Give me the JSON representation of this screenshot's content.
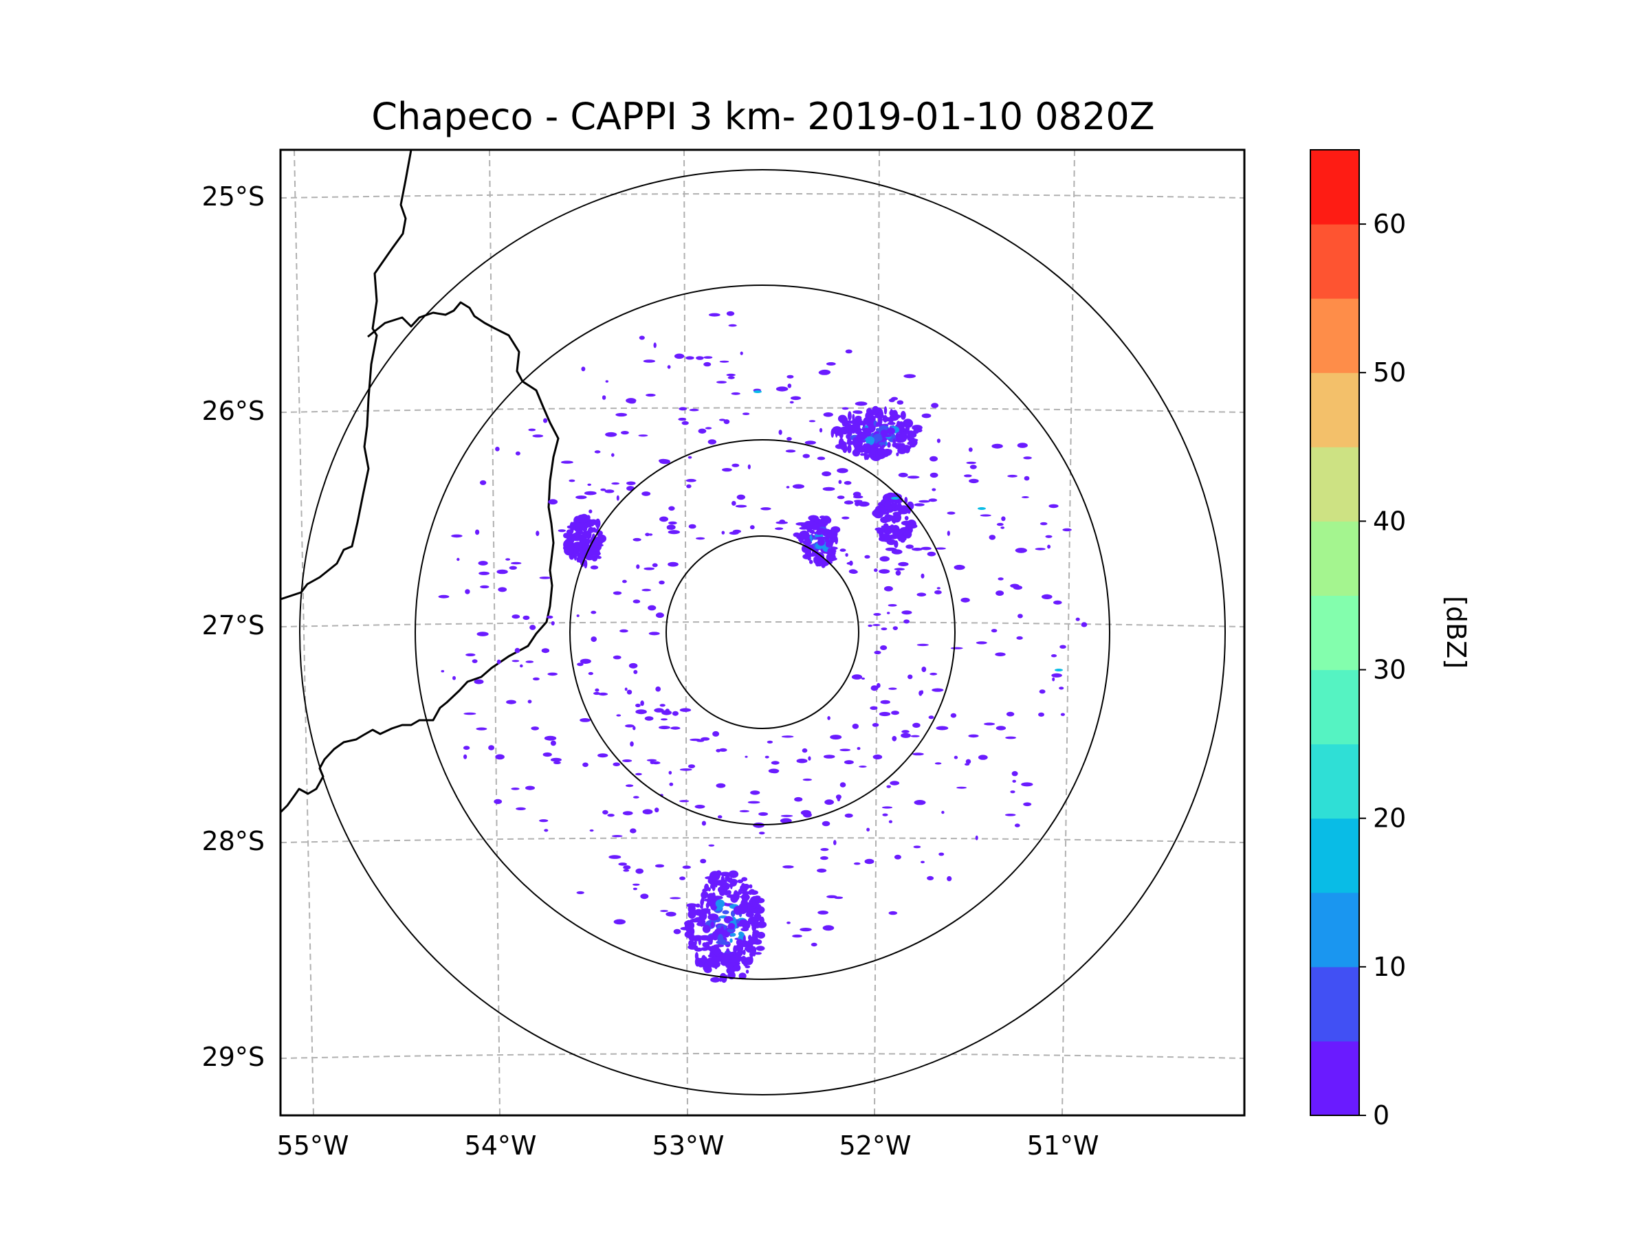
{
  "title": "Chapeco - CAPPI 3 km- 2019-01-10 0820Z",
  "map": {
    "lat_labels": [
      "25°S",
      "26°S",
      "27°S",
      "28°S",
      "29°S"
    ],
    "lon_labels": [
      "55°W",
      "54°W",
      "53°W",
      "52°W",
      "51°W"
    ],
    "radar_center": {
      "lon": -52.6,
      "lat": -27.02
    },
    "range_rings": 4
  },
  "colorbar": {
    "label": "[dBZ]",
    "tick_labels": [
      "0",
      "10",
      "20",
      "30",
      "40",
      "50",
      "60"
    ],
    "range": [
      0,
      65
    ],
    "levels": [
      0,
      5,
      10,
      15,
      20,
      25,
      30,
      35,
      40,
      45,
      50,
      55,
      60,
      65
    ],
    "colors": [
      "#6a1bff",
      "#4150f4",
      "#1a96f0",
      "#09bce6",
      "#2fdfd6",
      "#55f3c2",
      "#83fead",
      "#a4f58f",
      "#cde283",
      "#f3c06a",
      "#fe8d49",
      "#fe5431",
      "#fe1c14"
    ]
  },
  "chart_data": {
    "type": "heatmap",
    "title": "Chapeco - CAPPI 3 km- 2019-01-10 0820Z",
    "xlabel": "",
    "ylabel": "",
    "xlim": [
      -55.2,
      -50.05
    ],
    "ylim": [
      -29.3,
      -24.8
    ],
    "colorbar_label": "[dBZ]",
    "zlim": [
      0,
      65
    ],
    "echo_regions": [
      {
        "name": "southern cell",
        "lon": -52.8,
        "lat": -28.4,
        "max_dbz": 10
      },
      {
        "name": "northeastern cell",
        "lon": -52.0,
        "lat": -26.1,
        "max_dbz": 10
      },
      {
        "name": "central cell",
        "lon": -52.3,
        "lat": -26.6,
        "max_dbz": 10
      },
      {
        "name": "eastern cell",
        "lon": -51.9,
        "lat": -26.5,
        "max_dbz": 5
      },
      {
        "name": "western cell",
        "lon": -53.55,
        "lat": -26.6,
        "max_dbz": 5
      }
    ]
  }
}
